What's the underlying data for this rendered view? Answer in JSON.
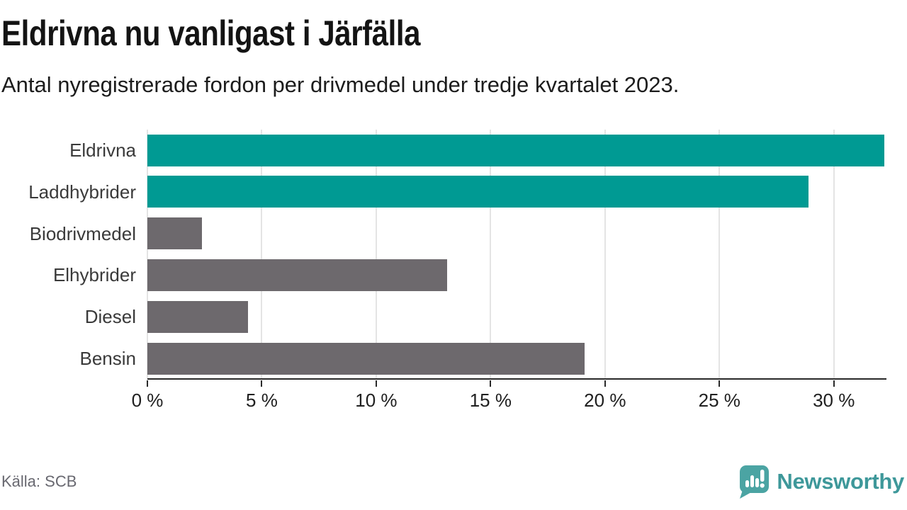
{
  "title": "Eldrivna nu vanligast i Järfälla",
  "subtitle": "Antal nyregistrerade fordon per drivmedel under tredje kvartalet 2023.",
  "source": "Källa: SCB",
  "brand": {
    "name": "Newsworthy",
    "icon": "newsworthy-chart-bubble-icon",
    "icon_color": "#4BA4A3",
    "text_color": "#3E989A"
  },
  "colors": {
    "highlight_bar": "#009A93",
    "default_bar": "#6D696D",
    "grid": "#E4E4E4",
    "axis": "#2A2A2A",
    "category_label": "#3A3A3A",
    "tick_label": "#202020",
    "source_text": "#686870"
  },
  "chart_data": {
    "type": "bar",
    "orientation": "horizontal",
    "title": "Eldrivna nu vanligast i Järfälla",
    "subtitle": "Antal nyregistrerade fordon per drivmedel under tredje kvartalet 2023.",
    "categories": [
      "Eldrivna",
      "Laddhybrider",
      "Biodrivmedel",
      "Elhybrider",
      "Diesel",
      "Bensin"
    ],
    "values": [
      32.2,
      28.9,
      2.4,
      13.1,
      4.4,
      19.1
    ],
    "unit": "%",
    "bar_colors": [
      "#009A93",
      "#009A93",
      "#6D696D",
      "#6D696D",
      "#6D696D",
      "#6D696D"
    ],
    "xlabel": "",
    "ylabel": "",
    "xlim": [
      0,
      32.3
    ],
    "xticks": [
      0,
      5,
      10,
      15,
      20,
      25,
      30
    ],
    "xtick_labels": [
      "0 %",
      "5 %",
      "10 %",
      "15 %",
      "20 %",
      "25 %",
      "30 %"
    ],
    "grid": true,
    "legend": false
  }
}
